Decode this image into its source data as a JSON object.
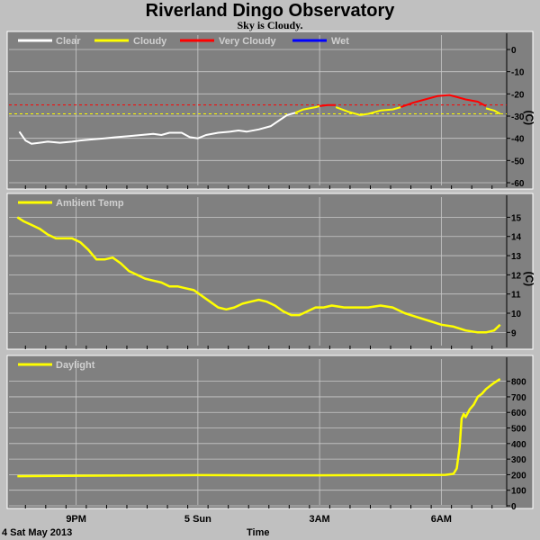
{
  "title": "Riverland Dingo Observatory",
  "subtitle": "Sky is Cloudy.",
  "footer": {
    "date_label": "4 Sat May 2013",
    "x_axis_label": "Time"
  },
  "colors": {
    "panel_bg": "#808080",
    "outer_bg": "#c0c0c0",
    "grid": "#c8c8c8",
    "clear": "#ffffff",
    "cloudy": "#ffff00",
    "very_cloudy": "#ff0000",
    "wet": "#0000ff"
  },
  "chart_data": [
    {
      "type": "line",
      "name": "sky-temperature",
      "ylabel": "(C)",
      "ylim": [
        -60,
        0
      ],
      "yticks": [
        0,
        -10,
        -20,
        -30,
        -40,
        -50,
        -60
      ],
      "x_tick_hours": [
        21,
        24,
        27,
        30
      ],
      "x_tick_labels": [
        "9PM",
        "5 Sun",
        "3AM",
        "6AM"
      ],
      "xlim_hours": [
        19.5,
        31.5
      ],
      "legend": [
        "Clear",
        "Cloudy",
        "Very Cloudy",
        "Wet"
      ],
      "thresholds": [
        {
          "value": -25,
          "color": "very_cloudy"
        },
        {
          "value": -29,
          "color": "cloudy"
        }
      ],
      "series": [
        {
          "legend_index": 0,
          "x_hours": [
            19.6,
            19.75,
            19.9,
            20.1,
            20.3,
            20.6,
            20.9,
            21.1,
            21.4,
            21.7,
            22.0,
            22.3,
            22.6,
            22.9,
            23.1,
            23.3,
            23.6,
            23.8,
            24.0,
            24.2,
            24.5,
            24.8,
            25.0,
            25.2,
            25.5,
            25.8,
            26.0,
            26.2,
            26.4
          ],
          "values": [
            -37,
            -41,
            -42.5,
            -42,
            -41.5,
            -42,
            -41.5,
            -41,
            -40.5,
            -40,
            -39.5,
            -39,
            -38.5,
            -38,
            -38.5,
            -37.5,
            -37.5,
            -39.5,
            -40,
            -38.5,
            -37.5,
            -37,
            -36.5,
            -37,
            -36,
            -34.5,
            -32,
            -29.5,
            -28.5
          ]
        },
        {
          "legend_index": 1,
          "x_hours": [
            26.4,
            26.6,
            26.9,
            27.0
          ],
          "values": [
            -28.5,
            -27,
            -26,
            -25.5
          ]
        },
        {
          "legend_index": 2,
          "x_hours": [
            27.0,
            27.2,
            27.4
          ],
          "values": [
            -25.5,
            -25,
            -25
          ]
        },
        {
          "legend_index": 1,
          "x_hours": [
            27.4,
            27.7,
            28.0,
            28.2,
            28.5,
            28.8,
            29.0
          ],
          "values": [
            -26,
            -28,
            -29.5,
            -29,
            -27.5,
            -27,
            -26
          ]
        },
        {
          "legend_index": 2,
          "x_hours": [
            29.0,
            29.3,
            29.6,
            29.9,
            30.2,
            30.4,
            30.6,
            30.9,
            31.1
          ],
          "values": [
            -26,
            -24,
            -22.5,
            -21,
            -20.5,
            -21.5,
            -22.5,
            -23.5,
            -25.5
          ]
        },
        {
          "legend_index": 1,
          "x_hours": [
            31.1,
            31.3,
            31.45
          ],
          "values": [
            -26.5,
            -27.5,
            -29
          ]
        }
      ]
    },
    {
      "type": "line",
      "name": "ambient-temperature",
      "ylabel": "(C)",
      "ylim": [
        8.5,
        15.3
      ],
      "yticks": [
        15,
        14,
        13,
        12,
        11,
        10,
        9
      ],
      "x_tick_hours": [
        21,
        24,
        27,
        30
      ],
      "xlim_hours": [
        19.5,
        31.5
      ],
      "legend": [
        "Ambient Temp"
      ],
      "series": [
        {
          "legend_index": 0,
          "x_hours": [
            19.55,
            19.7,
            19.9,
            20.1,
            20.3,
            20.5,
            20.7,
            20.9,
            21.1,
            21.3,
            21.5,
            21.7,
            21.9,
            22.1,
            22.3,
            22.5,
            22.7,
            22.9,
            23.1,
            23.3,
            23.5,
            23.7,
            23.9,
            24.1,
            24.3,
            24.5,
            24.7,
            24.9,
            25.1,
            25.3,
            25.5,
            25.7,
            25.9,
            26.1,
            26.3,
            26.5,
            26.7,
            26.9,
            27.1,
            27.3,
            27.6,
            27.9,
            28.2,
            28.5,
            28.8,
            29.1,
            29.4,
            29.7,
            30.0,
            30.3,
            30.6,
            30.9,
            31.1,
            31.3,
            31.45
          ],
          "values": [
            15.0,
            14.8,
            14.6,
            14.4,
            14.1,
            13.9,
            13.9,
            13.9,
            13.7,
            13.3,
            12.8,
            12.8,
            12.9,
            12.6,
            12.2,
            12.0,
            11.8,
            11.7,
            11.6,
            11.4,
            11.4,
            11.3,
            11.2,
            10.9,
            10.6,
            10.3,
            10.2,
            10.3,
            10.5,
            10.6,
            10.7,
            10.6,
            10.4,
            10.1,
            9.9,
            9.9,
            10.1,
            10.3,
            10.3,
            10.4,
            10.3,
            10.3,
            10.3,
            10.4,
            10.3,
            10.0,
            9.8,
            9.6,
            9.4,
            9.3,
            9.1,
            9.0,
            9.0,
            9.1,
            9.4
          ]
        }
      ]
    },
    {
      "type": "line",
      "name": "daylight",
      "ylabel": "",
      "ylim": [
        0,
        850
      ],
      "yticks": [
        800,
        700,
        600,
        500,
        400,
        300,
        200,
        100,
        0
      ],
      "x_tick_hours": [
        21,
        24,
        27,
        30
      ],
      "xlim_hours": [
        19.5,
        31.5
      ],
      "legend": [
        "Daylight"
      ],
      "series": [
        {
          "legend_index": 0,
          "x_hours": [
            19.55,
            21.0,
            22.5,
            24.0,
            25.5,
            27.0,
            28.5,
            29.7,
            30.1,
            30.3,
            30.38,
            30.45,
            30.5,
            30.55,
            30.6,
            30.7,
            30.8,
            30.9,
            31.0,
            31.1,
            31.2,
            31.3,
            31.45
          ],
          "values": [
            190,
            193,
            195,
            197,
            196,
            196,
            197,
            198,
            199,
            205,
            240,
            380,
            560,
            590,
            570,
            620,
            650,
            700,
            720,
            750,
            770,
            790,
            815
          ]
        }
      ]
    }
  ]
}
